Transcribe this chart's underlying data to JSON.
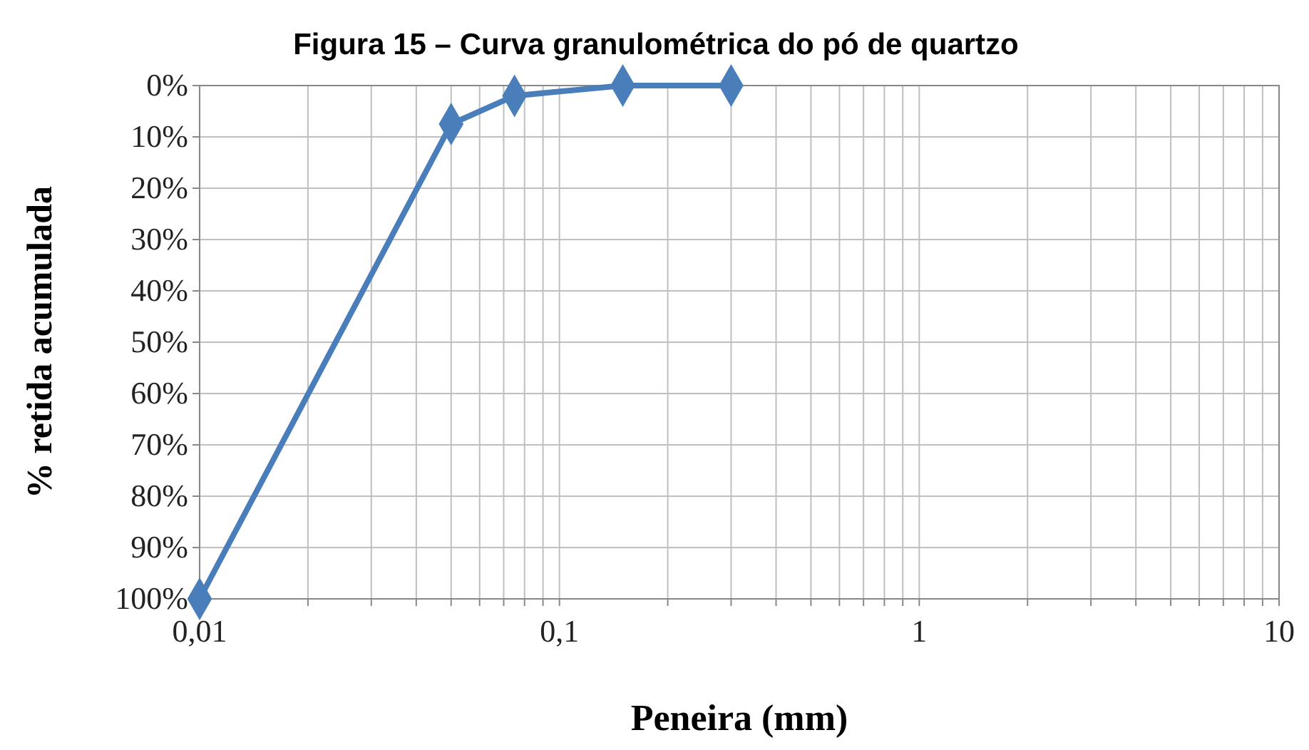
{
  "chart_data": {
    "type": "line",
    "title": "Figura 15 – Curva granulométrica do pó de quartzo",
    "xlabel": "Peneira (mm)",
    "ylabel": "% retida acumulada",
    "x": [
      0.01,
      0.05,
      0.075,
      0.15,
      0.3
    ],
    "series": [
      {
        "color": "#4a7ebb",
        "values": [
          100,
          7.5,
          2,
          0,
          0
        ]
      }
    ],
    "log": "x",
    "xlim": [
      0.01,
      10
    ],
    "ylim": [
      100,
      0
    ],
    "xticks": [
      {
        "value": 0.01,
        "label": "0,01"
      },
      {
        "value": 0.02,
        "label": null
      },
      {
        "value": 0.03,
        "label": null
      },
      {
        "value": 0.04,
        "label": null
      },
      {
        "value": 0.05,
        "label": null
      },
      {
        "value": 0.06,
        "label": null
      },
      {
        "value": 0.07,
        "label": null
      },
      {
        "value": 0.08,
        "label": null
      },
      {
        "value": 0.09,
        "label": null
      },
      {
        "value": 0.1,
        "label": "0,1"
      },
      {
        "value": 0.2,
        "label": null
      },
      {
        "value": 0.3,
        "label": null
      },
      {
        "value": 0.4,
        "label": null
      },
      {
        "value": 0.5,
        "label": null
      },
      {
        "value": 0.6,
        "label": null
      },
      {
        "value": 0.7,
        "label": null
      },
      {
        "value": 0.8,
        "label": null
      },
      {
        "value": 0.9,
        "label": null
      },
      1,
      {
        "value": 2,
        "label": null
      },
      {
        "value": 3,
        "label": null
      },
      {
        "value": 4,
        "label": null
      },
      {
        "value": 5,
        "label": null
      },
      {
        "value": 6,
        "label": null
      },
      {
        "value": 7,
        "label": null
      },
      {
        "value": 8,
        "label": null
      },
      {
        "value": 9,
        "label": null
      },
      10
    ],
    "yticks": [
      {
        "value": 0,
        "label": "0%"
      },
      {
        "value": 10,
        "label": "10%"
      },
      {
        "value": 20,
        "label": "20%"
      },
      {
        "value": 30,
        "label": "30%"
      },
      {
        "value": 40,
        "label": "40%"
      },
      {
        "value": 50,
        "label": "50%"
      },
      {
        "value": 60,
        "label": "60%"
      },
      {
        "value": 70,
        "label": "70%"
      },
      {
        "value": 80,
        "label": "80%"
      },
      {
        "value": 90,
        "label": "90%"
      },
      {
        "value": 100,
        "label": "100%"
      }
    ],
    "grid": true,
    "marker": "diamond",
    "line_style": "solid"
  }
}
